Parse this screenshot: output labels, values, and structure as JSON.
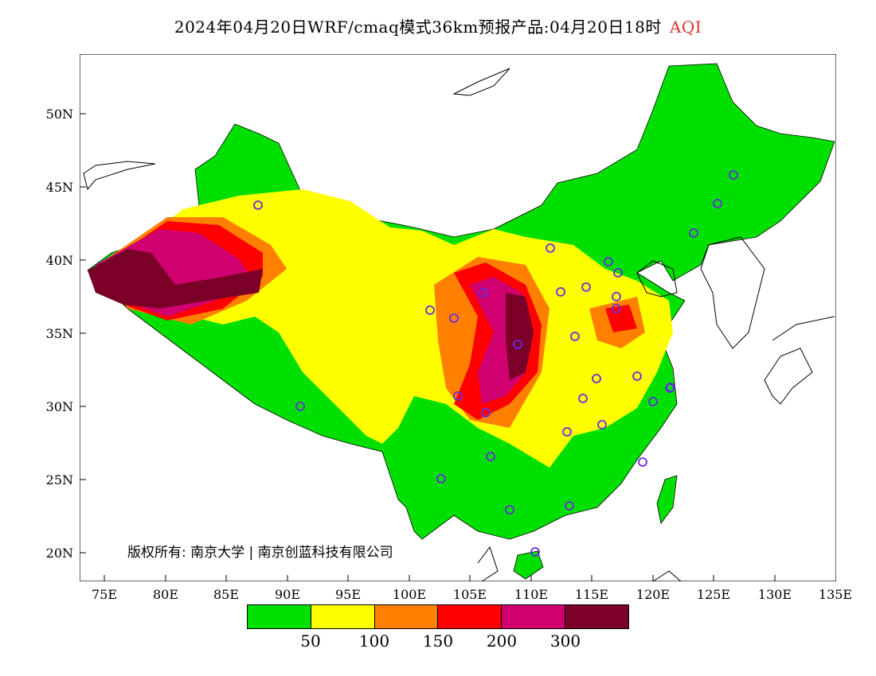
{
  "title": {
    "main": "2024年04月20日WRF/cmaq模式36km预报产品:04月20日18时",
    "variable": "AQI",
    "variable_color": "#e03030"
  },
  "map": {
    "lon_range": [
      73,
      135
    ],
    "lat_range": [
      18,
      54
    ],
    "y_ticks": [
      "50N",
      "45N",
      "40N",
      "35N",
      "30N",
      "25N",
      "20N"
    ],
    "x_ticks": [
      "75E",
      "80E",
      "85E",
      "90E",
      "95E",
      "100E",
      "105E",
      "110E",
      "115E",
      "120E",
      "125E",
      "130E",
      "135E"
    ],
    "copyright": "版权所有: 南京大学 | 南京创蓝科技有限公司"
  },
  "legend": {
    "colors": [
      "#00e000",
      "#ffff00",
      "#ff8000",
      "#ff0000",
      "#d00070",
      "#7a0028"
    ],
    "labels": [
      "50",
      "100",
      "150",
      "200",
      "300"
    ]
  }
}
